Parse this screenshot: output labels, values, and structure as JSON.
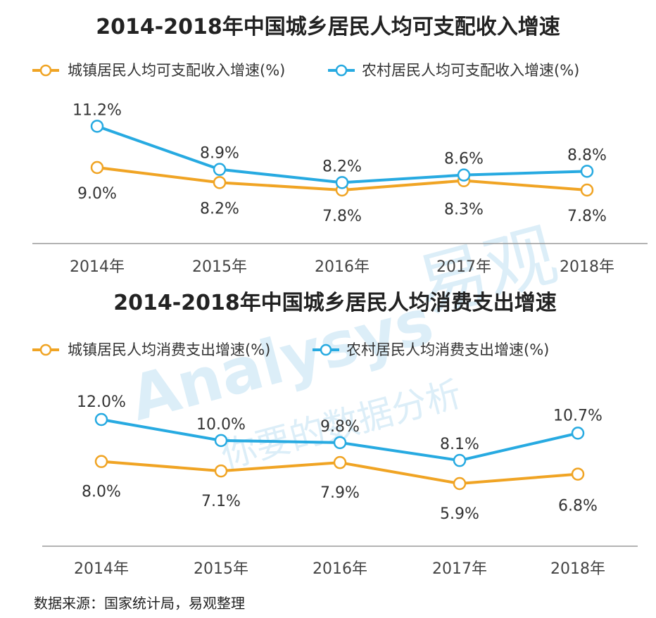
{
  "colors": {
    "urban": "#f0a424",
    "rural": "#27aae1",
    "axis": "#9a9a9a"
  },
  "chart_data": [
    {
      "type": "line",
      "title": "2014-2018年中国城乡居民人均可支配收入增速",
      "x": [
        "2014年",
        "2015年",
        "2016年",
        "2017年",
        "2018年"
      ],
      "series": [
        {
          "name": "城镇居民人均可支配收入增速(%)",
          "color": "urban",
          "values": [
            9.0,
            8.2,
            7.8,
            8.3,
            7.8
          ],
          "labels": [
            "9.0%",
            "8.2%",
            "7.8%",
            "8.3%",
            "7.8%"
          ]
        },
        {
          "name": "农村居民人均可支配收入增速(%)",
          "color": "rural",
          "values": [
            11.2,
            8.9,
            8.2,
            8.6,
            8.8
          ],
          "labels": [
            "11.2%",
            "8.9%",
            "8.2%",
            "8.6%",
            "8.8%"
          ]
        }
      ],
      "legend": "top-left",
      "grid": false
    },
    {
      "type": "line",
      "title": "2014-2018年中国城乡居民人均消费支出增速",
      "x": [
        "2014年",
        "2015年",
        "2016年",
        "2017年",
        "2018年"
      ],
      "series": [
        {
          "name": "城镇居民人均消费支出增速(%)",
          "color": "urban",
          "values": [
            8.0,
            7.1,
            7.9,
            5.9,
            6.8
          ],
          "labels": [
            "8.0%",
            "7.1%",
            "7.9%",
            "5.9%",
            "6.8%"
          ]
        },
        {
          "name": "农村居民人均消费支出增速(%)",
          "color": "rural",
          "values": [
            12.0,
            10.0,
            9.8,
            8.1,
            10.7
          ],
          "labels": [
            "12.0%",
            "10.0%",
            "9.8%",
            "8.1%",
            "10.7%"
          ]
        }
      ],
      "legend": "top-left",
      "grid": false
    }
  ],
  "watermark": {
    "brand_cn": "易观",
    "brand_en": "Analysys",
    "slogan": "你要的数据分析"
  },
  "source": "数据来源：国家统计局，易观整理"
}
